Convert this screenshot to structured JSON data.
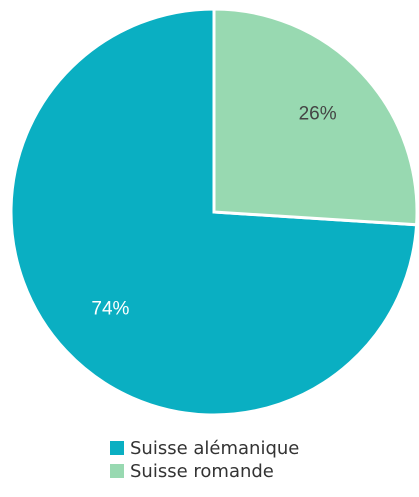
{
  "chart_data": {
    "type": "pie",
    "categories": [
      "Suisse alémanique",
      "Suisse romande"
    ],
    "values": [
      74,
      26
    ],
    "value_labels": [
      "74%",
      "26%"
    ],
    "colors": [
      "#0aafc2",
      "#98d9b1"
    ],
    "legend": "bottom"
  }
}
